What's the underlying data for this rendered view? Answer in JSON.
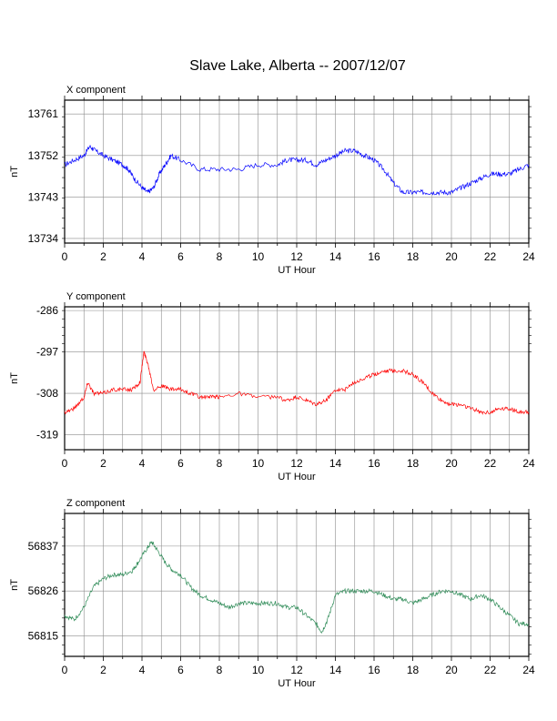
{
  "title": "Slave Lake, Alberta -- 2007/12/07",
  "chart_data": [
    {
      "type": "line",
      "panel_title": "X component",
      "xlabel": "UT Hour",
      "ylabel": "nT",
      "xlim": [
        0,
        24
      ],
      "ylim": [
        13733,
        13764
      ],
      "xticks": [
        0,
        2,
        4,
        6,
        8,
        10,
        12,
        14,
        16,
        18,
        20,
        22,
        24
      ],
      "yticks": [
        13734,
        13743,
        13752,
        13761
      ],
      "grid": true,
      "color": "#0000ff",
      "series": [
        {
          "x": [
            0,
            0.5,
            1.0,
            1.3,
            1.6,
            2.0,
            2.5,
            3.0,
            3.3,
            3.6,
            4.0,
            4.3,
            4.6,
            4.9,
            5.2,
            5.5,
            6.0,
            7.0,
            8.0,
            9.0,
            10.0,
            11.0,
            11.5,
            12.0,
            12.5,
            13.0,
            13.5,
            14.0,
            14.5,
            15.0,
            15.5,
            16.0,
            16.5,
            17.0,
            17.5,
            18.0,
            18.5,
            19.0,
            19.5,
            20.0,
            20.5,
            21.0,
            21.5,
            22.0,
            22.5,
            23.0,
            23.5,
            24.0
          ],
          "y": [
            13750,
            13751,
            13752,
            13754,
            13753,
            13752,
            13751,
            13750,
            13749,
            13747,
            13745,
            13744,
            13745,
            13748,
            13750,
            13752,
            13751,
            13749,
            13749,
            13749,
            13750,
            13750,
            13751,
            13751,
            13751,
            13750,
            13751,
            13752,
            13753,
            13753,
            13752,
            13751,
            13749,
            13746,
            13744,
            13744,
            13744,
            13744,
            13744,
            13744,
            13745,
            13746,
            13747,
            13748,
            13748,
            13748,
            13749,
            13750
          ]
        }
      ]
    },
    {
      "type": "line",
      "panel_title": "Y component",
      "xlabel": "UT Hour",
      "ylabel": "nT",
      "xlim": [
        0,
        24
      ],
      "ylim": [
        -323,
        -285
      ],
      "xticks": [
        0,
        2,
        4,
        6,
        8,
        10,
        12,
        14,
        16,
        18,
        20,
        22,
        24
      ],
      "yticks": [
        -286,
        -297,
        -308,
        -319
      ],
      "grid": true,
      "color": "#ff0000",
      "series": [
        {
          "x": [
            0,
            0.5,
            1.0,
            1.2,
            1.5,
            2.0,
            2.5,
            3.0,
            3.5,
            3.9,
            4.1,
            4.3,
            4.6,
            5.0,
            5.5,
            6.0,
            6.5,
            7.0,
            7.5,
            8.0,
            9.0,
            10.0,
            11.0,
            11.5,
            12.0,
            12.5,
            13.0,
            13.5,
            14.0,
            14.5,
            15.0,
            15.5,
            16.0,
            16.5,
            17.0,
            17.5,
            18.0,
            18.5,
            19.0,
            19.5,
            20.0,
            20.5,
            21.0,
            21.5,
            22.0,
            22.5,
            23.0,
            23.5,
            24.0
          ],
          "y": [
            -313,
            -312,
            -309,
            -305,
            -308,
            -308,
            -307,
            -307,
            -307,
            -305,
            -297,
            -300,
            -307,
            -306,
            -307,
            -307,
            -308,
            -309,
            -309,
            -309,
            -308,
            -309,
            -309,
            -310,
            -309,
            -310,
            -311,
            -310,
            -307,
            -307,
            -305,
            -304,
            -303,
            -302,
            -302,
            -302,
            -303,
            -305,
            -308,
            -310,
            -311,
            -311,
            -312,
            -313,
            -313,
            -312,
            -312,
            -313,
            -313
          ]
        }
      ]
    },
    {
      "type": "line",
      "panel_title": "Z component",
      "xlabel": "UT Hour",
      "ylabel": "nT",
      "xlim": [
        0,
        24
      ],
      "ylim": [
        56810,
        56845
      ],
      "xticks": [
        0,
        2,
        4,
        6,
        8,
        10,
        12,
        14,
        16,
        18,
        20,
        22,
        24
      ],
      "yticks": [
        56815,
        56826,
        56837
      ],
      "grid": true,
      "color": "#2e8b57",
      "series": [
        {
          "x": [
            0,
            0.5,
            1.0,
            1.5,
            2.0,
            2.5,
            3.0,
            3.5,
            3.8,
            4.2,
            4.5,
            4.8,
            5.2,
            5.6,
            6.0,
            6.5,
            7.0,
            7.5,
            8.0,
            8.5,
            9.0,
            9.5,
            10.0,
            10.5,
            11.0,
            11.5,
            12.0,
            12.5,
            13.0,
            13.3,
            13.6,
            14.0,
            14.5,
            15.0,
            15.5,
            16.0,
            16.5,
            17.0,
            17.5,
            18.0,
            18.5,
            19.0,
            19.5,
            20.0,
            20.5,
            21.0,
            21.5,
            22.0,
            22.5,
            23.0,
            23.5,
            24.0
          ],
          "y": [
            56820,
            56819,
            56822,
            56827,
            56829,
            56830,
            56830,
            56831,
            56833,
            56836,
            56838,
            56836,
            56833,
            56831,
            56830,
            56827,
            56825,
            56824,
            56823,
            56822,
            56823,
            56823,
            56823,
            56823,
            56823,
            56822,
            56822,
            56820,
            56818,
            56816,
            56819,
            56825,
            56826,
            56826,
            56826,
            56826,
            56825,
            56824,
            56824,
            56823,
            56824,
            56825,
            56826,
            56826,
            56825,
            56824,
            56825,
            56824,
            56822,
            56820,
            56818,
            56818
          ]
        }
      ]
    }
  ]
}
